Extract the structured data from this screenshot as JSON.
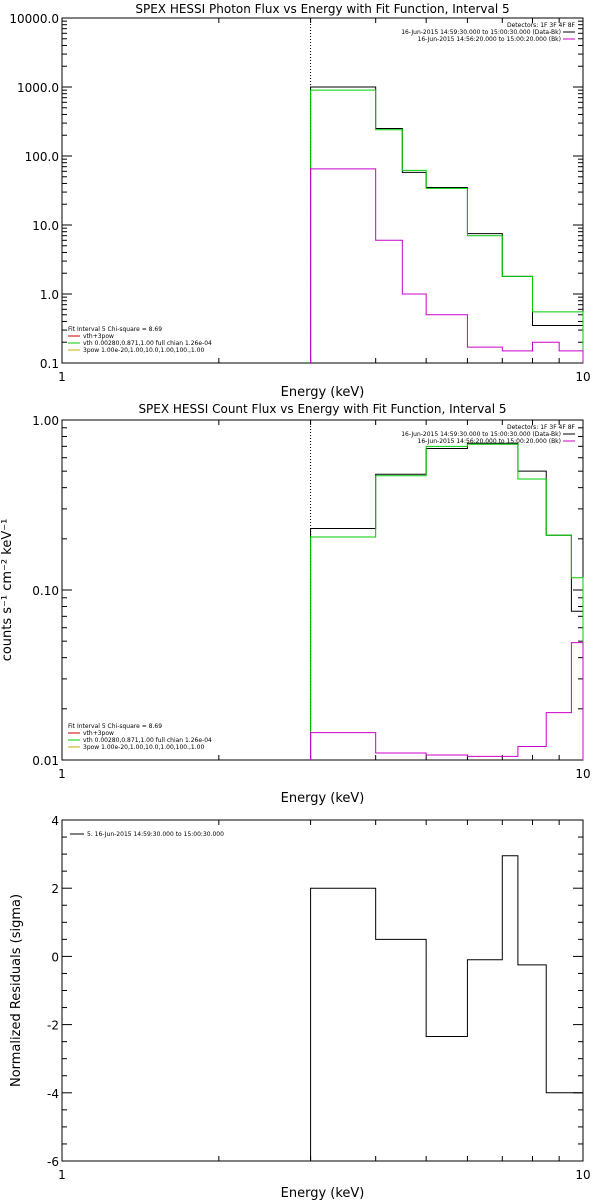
{
  "chart_data": [
    {
      "type": "line",
      "title": "SPEX HESSI Photon Flux vs Energy with Fit Function, Interval 5",
      "xlabel": "Energy (keV)",
      "ylabel": "",
      "xlim": [
        1,
        10
      ],
      "ylim": [
        0.1,
        10000
      ],
      "x_scale": "log",
      "y_scale": "log",
      "xticks": [
        {
          "v": 1,
          "label": "1"
        },
        {
          "v": 10,
          "label": "10"
        }
      ],
      "yticks": [
        {
          "v": 0.1,
          "label": "0.1"
        },
        {
          "v": 1,
          "label": "1.0"
        },
        {
          "v": 10,
          "label": "10.0"
        },
        {
          "v": 100,
          "label": "100.0"
        },
        {
          "v": 1000,
          "label": "1000.0"
        },
        {
          "v": 10000,
          "label": "10000.0"
        }
      ],
      "vline_x": 3.0,
      "legend_right": {
        "header": "Detectors: 1F 3F 4F 8F",
        "lines": [
          {
            "text": "16-Jun-2015 14:59:30.000 to 15:00:30.000 (Data-Bk)",
            "color": "#000000"
          },
          {
            "text": "16-Jun-2015 14:56:20.000 to 15:00:20.000 (Bk)",
            "color": "#cc00cc"
          }
        ]
      },
      "legend_left": {
        "header": "Fit Interval 5   Chi-square = 8.69",
        "lines": [
          {
            "text": "vth+3pow",
            "color": "#cc0000"
          },
          {
            "text": "vth 0.00280,0.871,1.00   full chian 1.26e-04",
            "color": "#00cc00"
          },
          {
            "text": "3pow 1.00e-20,1.00,10.0,1.00,100.,1.00",
            "color": "#ccaa00"
          }
        ]
      },
      "series": [
        {
          "color": "#000000",
          "edges": [
            3.0,
            3.5,
            4.0,
            4.5,
            5.0,
            6.0,
            7.0,
            8.0,
            9.0,
            10.0
          ],
          "values": [
            1000,
            1000,
            250,
            58,
            35,
            7.5,
            1.8,
            0.35,
            0.35
          ]
        },
        {
          "color": "#00cc00",
          "edges": [
            3.0,
            3.5,
            4.0,
            4.5,
            5.0,
            6.0,
            7.0,
            8.0,
            9.0,
            10.0
          ],
          "values": [
            900,
            900,
            240,
            62,
            34,
            7.0,
            1.8,
            0.55,
            0.55
          ]
        },
        {
          "color": "#cc00cc",
          "edges": [
            3.0,
            3.5,
            4.0,
            4.5,
            5.0,
            6.0,
            7.0,
            8.0,
            9.0,
            10.0
          ],
          "values": [
            65,
            65,
            6.0,
            1.0,
            0.5,
            0.17,
            0.15,
            0.2,
            0.15
          ]
        }
      ]
    },
    {
      "type": "line",
      "title": "SPEX HESSI Count Flux vs Energy with Fit Function, Interval 5",
      "xlabel": "Energy (keV)",
      "ylabel": "counts s⁻¹ cm⁻² keV⁻¹",
      "xlim": [
        1,
        10
      ],
      "ylim": [
        0.01,
        1
      ],
      "x_scale": "log",
      "y_scale": "log",
      "xticks": [
        {
          "v": 1,
          "label": "1"
        },
        {
          "v": 10,
          "label": "10"
        }
      ],
      "yticks": [
        {
          "v": 0.01,
          "label": "0.01"
        },
        {
          "v": 0.1,
          "label": "0.10"
        },
        {
          "v": 1,
          "label": "1.00"
        }
      ],
      "vline_x": 3.0,
      "legend_right": {
        "header": "Detectors: 1F 3F 4F 8F",
        "lines": [
          {
            "text": "16-Jun-2015 14:59:30.000 to 15:00:30.000 (Data-Bk)",
            "color": "#000000"
          },
          {
            "text": "16-Jun-2015 14:56:20.000 to 15:00:20.000 (Bk)",
            "color": "#cc00cc"
          }
        ]
      },
      "legend_left": {
        "header": "Fit Interval 5   Chi-square = 8.69",
        "lines": [
          {
            "text": "vth+3pow",
            "color": "#cc0000"
          },
          {
            "text": "vth 0.00280,0.871,1.00   full chian 1.26e-04",
            "color": "#00cc00"
          },
          {
            "text": "3pow 1.00e-20,1.00,10.0,1.00,100.,1.00",
            "color": "#ccaa00"
          }
        ]
      },
      "series": [
        {
          "color": "#000000",
          "edges": [
            3.0,
            4.0,
            5.0,
            6.0,
            7.5,
            8.5,
            9.5,
            10.0
          ],
          "values": [
            0.23,
            0.48,
            0.68,
            0.73,
            0.5,
            0.21,
            0.075
          ]
        },
        {
          "color": "#00cc00",
          "edges": [
            3.0,
            4.0,
            5.0,
            6.0,
            7.5,
            8.5,
            9.5,
            10.0
          ],
          "values": [
            0.205,
            0.47,
            0.7,
            0.72,
            0.45,
            0.21,
            0.118
          ]
        },
        {
          "color": "#cc00cc",
          "edges": [
            3.0,
            4.0,
            5.0,
            6.0,
            7.0,
            7.5,
            8.5,
            9.5,
            10.0
          ],
          "values": [
            0.0145,
            0.011,
            0.0107,
            0.0105,
            0.0105,
            0.012,
            0.019,
            0.049
          ]
        }
      ]
    },
    {
      "type": "line",
      "title": "",
      "xlabel": "Energy (keV)",
      "ylabel": "Normalized Residuals (sigma)",
      "xlim": [
        1,
        10
      ],
      "ylim": [
        -6,
        4
      ],
      "x_scale": "log",
      "y_scale": "linear",
      "xticks": [
        {
          "v": 1,
          "label": "1"
        },
        {
          "v": 10,
          "label": "10"
        }
      ],
      "yticks": [
        {
          "v": -6,
          "label": "-6"
        },
        {
          "v": -4,
          "label": "-4"
        },
        {
          "v": -2,
          "label": "-2"
        },
        {
          "v": 0,
          "label": "0"
        },
        {
          "v": 2,
          "label": "2"
        },
        {
          "v": 4,
          "label": "4"
        }
      ],
      "legend_single": {
        "text": "5. 16-Jun-2015 14:59:30.000 to 15:00:30.000",
        "color": "#000000"
      },
      "series": [
        {
          "color": "#000000",
          "edges": [
            3.0,
            4.0,
            5.0,
            6.0,
            7.0,
            7.5,
            8.5,
            9.5,
            10.0
          ],
          "values": [
            2.0,
            0.5,
            -2.35,
            -0.1,
            2.95,
            -0.25,
            -4.0,
            -4.0
          ]
        }
      ]
    }
  ]
}
